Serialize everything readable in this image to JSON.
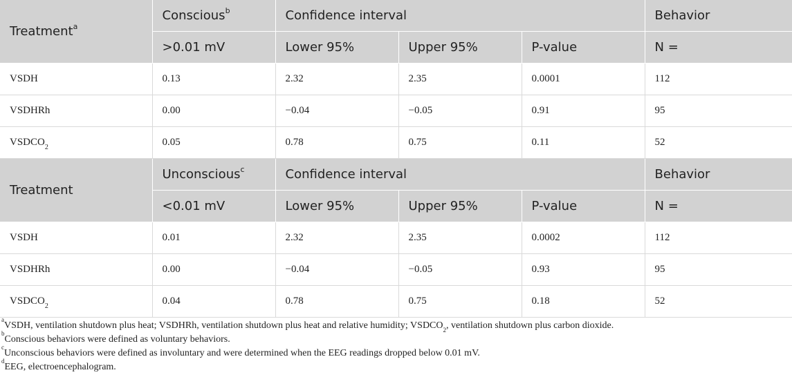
{
  "table1": {
    "header1": {
      "treatment": "Treatment",
      "treatment_sup": "a",
      "conscious": "Conscious",
      "conscious_sup": "b",
      "ci": "Confidence interval",
      "behavior": "Behavior"
    },
    "header2": {
      "threshold": ">0.01 mV",
      "lower": "Lower 95%",
      "upper": "Upper 95%",
      "pvalue": "P-value",
      "n": "N ="
    },
    "rows": [
      {
        "treatment": "VSDH",
        "treatment_sub": "",
        "value": "0.13",
        "lower": "2.32",
        "upper": "2.35",
        "p": "0.0001",
        "n": "112"
      },
      {
        "treatment": "VSDHRh",
        "treatment_sub": "",
        "value": "0.00",
        "lower": "−0.04",
        "upper": "−0.05",
        "p": "0.91",
        "n": "95"
      },
      {
        "treatment": "VSDCO",
        "treatment_sub": "2",
        "value": "0.05",
        "lower": "0.78",
        "upper": "0.75",
        "p": "0.11",
        "n": "52"
      }
    ]
  },
  "table2": {
    "header1": {
      "treatment": "Treatment",
      "unconscious": "Unconscious",
      "unconscious_sup": "c",
      "ci": "Confidence interval",
      "behavior": "Behavior"
    },
    "header2": {
      "threshold": "<0.01 mV",
      "lower": "Lower 95%",
      "upper": "Upper 95%",
      "pvalue": "P-value",
      "n": "N ="
    },
    "rows": [
      {
        "treatment": "VSDH",
        "treatment_sub": "",
        "value": "0.01",
        "lower": "2.32",
        "upper": "2.35",
        "p": "0.0002",
        "n": "112"
      },
      {
        "treatment": "VSDHRh",
        "treatment_sub": "",
        "value": "0.00",
        "lower": "−0.04",
        "upper": "−0.05",
        "p": "0.93",
        "n": "95"
      },
      {
        "treatment": "VSDCO",
        "treatment_sub": "2",
        "value": "0.04",
        "lower": "0.78",
        "upper": "0.75",
        "p": "0.18",
        "n": "52"
      }
    ]
  },
  "footnotes": {
    "a": {
      "mark": "a",
      "text1": "VSDH, ventilation shutdown plus heat; VSDHRh, ventilation shutdown plus heat and relative humidity; VSDCO",
      "sub": "2",
      "text2": ", ventilation shutdown plus carbon dioxide."
    },
    "b": {
      "mark": "b",
      "text": "Conscious behaviors were defined as voluntary behaviors."
    },
    "c": {
      "mark": "c",
      "text": "Unconscious behaviors were defined as involuntary and were determined when the EEG readings dropped below 0.01 mV."
    },
    "d": {
      "mark": "d",
      "text": "EEG, electroencephalogram."
    }
  }
}
